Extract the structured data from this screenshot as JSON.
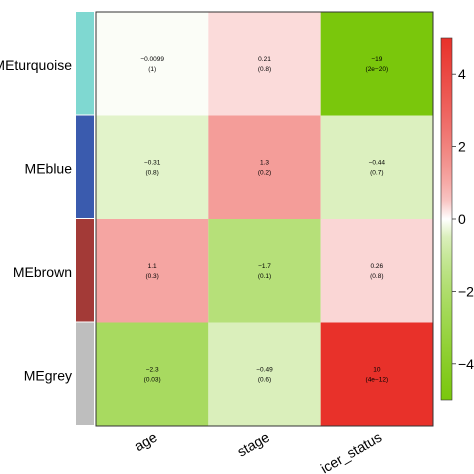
{
  "chart_data": {
    "type": "heatmap",
    "rows": [
      "MEturquoise",
      "MEblue",
      "MEbrown",
      "MEgrey"
    ],
    "row_colors": [
      "#7fd8d1",
      "#3a5bae",
      "#a33a37",
      "#bebebe"
    ],
    "columns": [
      "age",
      "stage",
      "cancer_status"
    ],
    "column_labels_visible": [
      "age",
      "stage",
      "icer_status"
    ],
    "values": [
      [
        -0.0099,
        0.21,
        -19
      ],
      [
        -0.31,
        1.3,
        -0.44
      ],
      [
        1.1,
        -1.7,
        0.26
      ],
      [
        -2.3,
        -0.49,
        10
      ]
    ],
    "cell_text": [
      [
        [
          "−0.0099",
          "(1)"
        ],
        [
          "0.21",
          "(0.8)"
        ],
        [
          "−19",
          "(2e−20)"
        ]
      ],
      [
        [
          "−0.31",
          "(0.8)"
        ],
        [
          "1.3",
          "(0.2)"
        ],
        [
          "−0.44",
          "(0.7)"
        ]
      ],
      [
        [
          "1.1",
          "(0.3)"
        ],
        [
          "−1.7",
          "(0.1)"
        ],
        [
          "0.26",
          "(0.8)"
        ]
      ],
      [
        [
          "−2.3",
          "(0.03)"
        ],
        [
          "−0.49",
          "(0.6)"
        ],
        [
          "10",
          "(4e−12)"
        ]
      ]
    ],
    "colorbar": {
      "range": [
        -5,
        5
      ],
      "ticks": [
        4,
        2,
        0,
        -2,
        -4
      ],
      "tick_labels": [
        "4",
        "2",
        "0",
        "−2",
        "−4"
      ],
      "high_color": "#e8312a",
      "mid_color": "#ffffff",
      "low_color": "#7ac70c"
    },
    "title": "",
    "xlabel": "",
    "ylabel": "",
    "grid": false,
    "legend_placement": "right"
  }
}
